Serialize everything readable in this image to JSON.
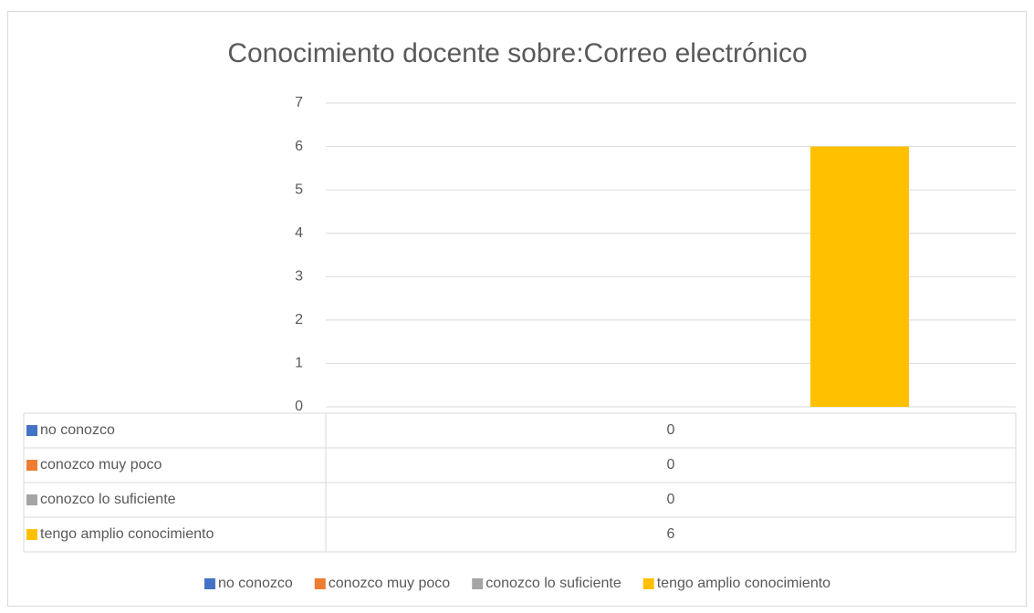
{
  "chart_data": {
    "type": "bar",
    "title": "Conocimiento docente sobre:Correo electrónico",
    "categories": [
      null
    ],
    "series": [
      {
        "name": "no conozco",
        "color": "#4472c4",
        "values": [
          0
        ]
      },
      {
        "name": "conozco muy poco",
        "color": "#ed7d31",
        "values": [
          0
        ]
      },
      {
        "name": "conozco lo suficiente",
        "color": "#a5a5a5",
        "values": [
          0
        ]
      },
      {
        "name": "tengo amplio conocimiento",
        "color": "#ffc000",
        "values": [
          6
        ]
      }
    ],
    "ylim": [
      0,
      7
    ],
    "yticks": [
      0,
      1,
      2,
      3,
      4,
      5,
      6,
      7
    ],
    "grid": true,
    "data_table": true,
    "legend": "bottom"
  }
}
